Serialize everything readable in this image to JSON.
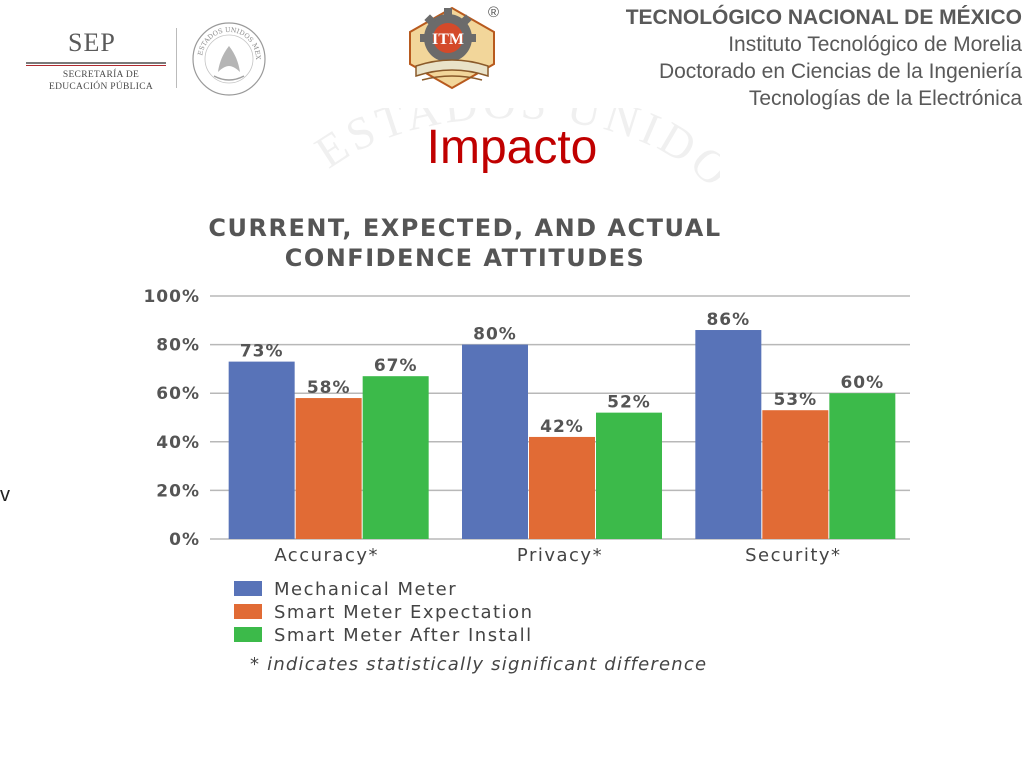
{
  "header": {
    "sep": {
      "title": "SEP",
      "subtitle_line1": "SECRETARÍA DE",
      "subtitle_line2": "EDUCACIÓN PÚBLICA"
    },
    "seal_text": "ESTADOS UNIDOS MEXICANOS",
    "logo_text": "ITM",
    "registered_mark": "®",
    "institution": {
      "line1": "TECNOLÓGICO NACIONAL DE MÉXICO",
      "line2": "Instituto Tecnológico de Morelia",
      "line3": "Doctorado en Ciencias de la Ingeniería",
      "line4": "Tecnologías de la Electrónica"
    }
  },
  "slide": {
    "title": "Impacto",
    "stray_text": "v"
  },
  "chart_data": {
    "type": "bar",
    "title_line1": "CURRENT, EXPECTED, AND ACTUAL",
    "title_line2": "CONFIDENCE ATTITUDES",
    "categories": [
      "Accuracy*",
      "Privacy*",
      "Security*"
    ],
    "series": [
      {
        "name": "Mechanical Meter",
        "values": [
          73,
          80,
          86
        ],
        "labels": [
          "73%",
          "80%",
          "86%"
        ],
        "color": "#5873b8"
      },
      {
        "name": "Smart Meter Expectation",
        "values": [
          58,
          42,
          53
        ],
        "labels": [
          "58%",
          "42%",
          "53%"
        ],
        "color": "#e16b35"
      },
      {
        "name": "Smart Meter After Install",
        "values": [
          67,
          52,
          60
        ],
        "labels": [
          "67%",
          "52%",
          "60%"
        ],
        "color": "#3cba4a"
      }
    ],
    "ylim": [
      0,
      100
    ],
    "yticks": [
      "0%",
      "20%",
      "40%",
      "60%",
      "80%",
      "100%"
    ],
    "grid": true,
    "legend_position": "bottom-left",
    "footnote": "* indicates statistically significant difference"
  }
}
